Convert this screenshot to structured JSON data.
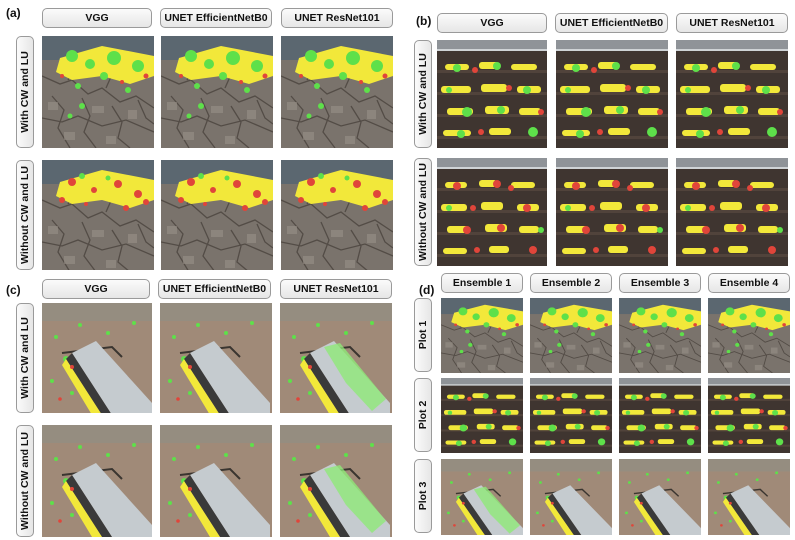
{
  "panels": {
    "a": {
      "label": "(a)",
      "columns": [
        "VGG",
        "UNET EfficientNetB0",
        "UNET ResNet101"
      ],
      "rows": [
        "With CW and LU",
        "Without CW and LU"
      ]
    },
    "b": {
      "label": "(b)",
      "columns": [
        "VGG",
        "UNET EfficientNetB0",
        "UNET ResNet101"
      ],
      "rows": [
        "With CW and LU",
        "Without CW and LU"
      ]
    },
    "c": {
      "label": "(c)",
      "columns": [
        "VGG",
        "UNET EfficientNetB0",
        "UNET ResNet101"
      ],
      "rows": [
        "With CW and LU",
        "Without CW and LU"
      ]
    },
    "d": {
      "label": "(d)",
      "columns": [
        "Ensemble 1",
        "Ensemble 2",
        "Ensemble 3",
        "Ensemble 4"
      ],
      "rows": [
        "Plot 1",
        "Plot 2",
        "Plot 3"
      ]
    }
  },
  "colors": {
    "soil_a": "#7a736c",
    "soil_b": "#3f3530",
    "soil_c": "#a08a78",
    "overlay_yellow": "#f2e83a",
    "overlay_green": "#5ee04a",
    "overlay_red": "#e0453a",
    "board": "#c5cbcf"
  }
}
